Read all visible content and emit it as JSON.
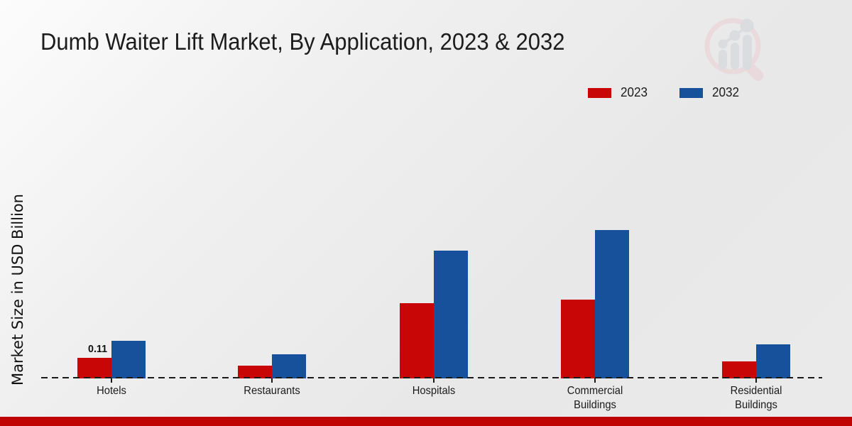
{
  "title": "Dumb Waiter Lift Market, By Application, 2023 & 2032",
  "ylabel": "Market Size in USD Billion",
  "legend": {
    "items": [
      {
        "label": "2023",
        "color": "#c90606"
      },
      {
        "label": "2032",
        "color": "#17519b"
      }
    ]
  },
  "colors": {
    "series_2023": "#c90606",
    "series_2032": "#17519b",
    "footer_strip": "#c00404",
    "axis": "#1a1a1a"
  },
  "chart_data": {
    "type": "bar",
    "title": "Dumb Waiter Lift Market, By Application, 2023 & 2032",
    "xlabel": "",
    "ylabel": "Market Size in USD Billion",
    "categories": [
      "Hotels",
      "Restaurants",
      "Hospitals",
      "Commercial Buildings",
      "Residential Buildings"
    ],
    "series": [
      {
        "name": "2023",
        "color": "#c90606",
        "values": [
          0.11,
          0.07,
          0.4,
          0.42,
          0.09
        ],
        "labels": [
          "0.11",
          "",
          "",
          "",
          ""
        ]
      },
      {
        "name": "2032",
        "color": "#17519b",
        "values": [
          0.2,
          0.13,
          0.68,
          0.79,
          0.18
        ],
        "labels": [
          "",
          "",
          "",
          "",
          ""
        ]
      }
    ],
    "ylim": [
      0,
      0.85
    ],
    "grid": false,
    "y_axis_ticks_visible": false,
    "baseline_style": "dashed",
    "legend_position": "top-right"
  }
}
